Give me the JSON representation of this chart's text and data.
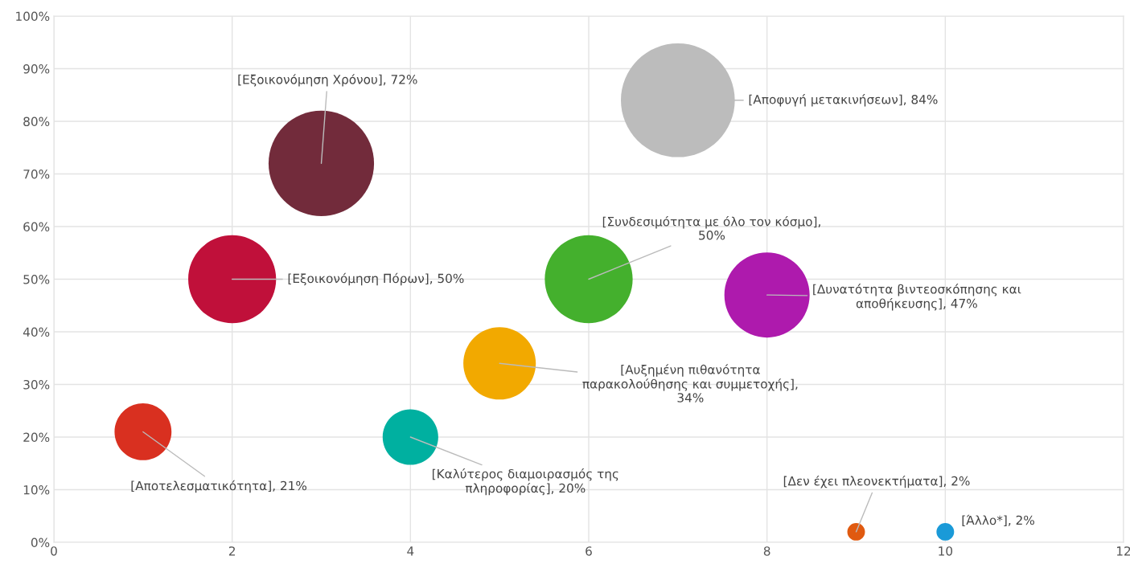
{
  "chart_data": {
    "type": "bubble",
    "x": [
      1,
      2,
      3,
      4,
      5,
      6,
      7,
      8,
      9,
      10
    ],
    "values": [
      21,
      50,
      72,
      20,
      34,
      50,
      84,
      47,
      2,
      2
    ],
    "sizes": [
      0.25,
      0.595,
      0.857,
      0.238,
      0.405,
      0.595,
      1,
      0.56,
      0.024,
      0.024
    ],
    "colors": [
      "#d93020",
      "#c0103a",
      "#722b3b",
      "#00b0a0",
      "#f2a900",
      "#44b02d",
      "#bcbcbc",
      "#ae1aad",
      "#e05a10",
      "#1a9ad8"
    ],
    "xlim": [
      0,
      12
    ],
    "xticks": [
      0,
      2,
      4,
      6,
      8,
      10,
      12
    ],
    "ylim": [
      0,
      100
    ],
    "yticks": [
      {
        "value": 0,
        "label": "0%"
      },
      {
        "value": 10,
        "label": "10%"
      },
      {
        "value": 20,
        "label": "20%"
      },
      {
        "value": 30,
        "label": "30%"
      },
      {
        "value": 40,
        "label": "40%"
      },
      {
        "value": 50,
        "label": "50%"
      },
      {
        "value": 60,
        "label": "60%"
      },
      {
        "value": 70,
        "label": "70%"
      },
      {
        "value": 80,
        "label": "80%"
      },
      {
        "value": 90,
        "label": "90%"
      },
      {
        "value": 100,
        "label": "100%"
      }
    ],
    "grid": true,
    "annotations": [
      {
        "text": "[Αποτελεσματικότητα], 21%",
        "x": 1,
        "y": 21
      },
      {
        "text": "[Εξοικονόμηση Πόρων], 50%",
        "x": 2,
        "y": 50
      },
      {
        "text": "[Εξοικονόμηση Χρόνου], 72%",
        "x": 3,
        "y": 72
      },
      {
        "text": "[Καλύτερος διαμοιρασμός της\nπληροφορίας], 20%",
        "x": 4,
        "y": 20
      },
      {
        "text": "[Αυξημένη πιθανότητα\nπαρακολούθησης και συμμετοχής],\n34%",
        "x": 5,
        "y": 34
      },
      {
        "text": "[Συνδεσιμότητα με όλο τον κόσμο],\n50%",
        "x": 6,
        "y": 50
      },
      {
        "text": "[Αποφυγή μετακινήσεων], 84%",
        "x": 7,
        "y": 84
      },
      {
        "text": "[Δυνατότητα βιντεοσκόπησης και\nαποθήκευσης], 47%",
        "x": 8,
        "y": 47
      },
      {
        "text": "[Δεν έχει πλεονεκτήματα], 2%",
        "x": 9,
        "y": 2
      },
      {
        "text": "[Άλλο*], 2%",
        "x": 10,
        "y": 2
      }
    ]
  }
}
